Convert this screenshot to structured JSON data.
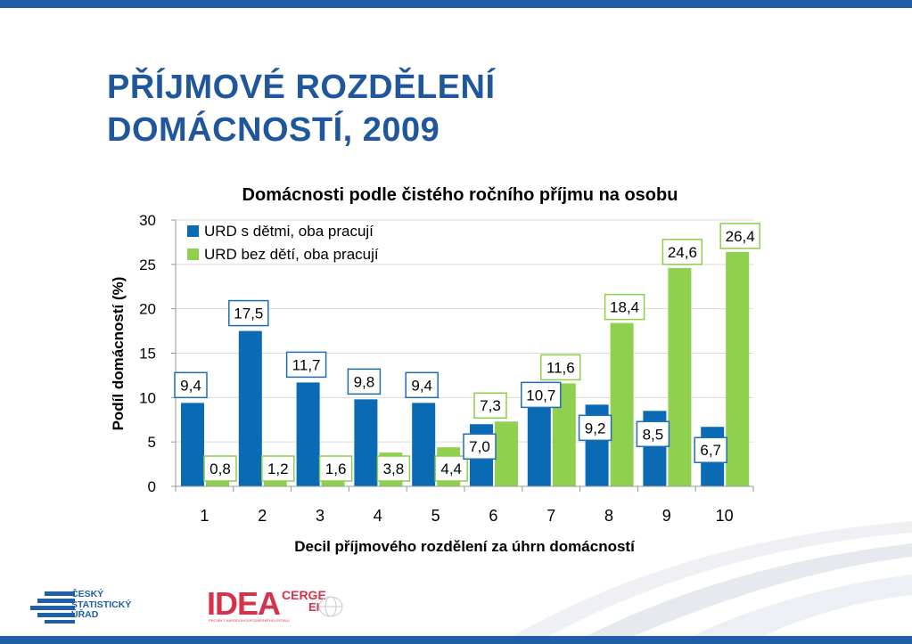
{
  "slide": {
    "title_line1": "PŘÍJMOVÉ ROZDĚLENÍ",
    "title_line2": "DOMÁCNOSTÍ, 2009"
  },
  "logos": {
    "csu_line1": "ČESKÝ",
    "csu_line2": "STATISTICKÝ",
    "csu_line3": "ÚŘAD",
    "idea_main": "IDEA",
    "idea_cerge": "CERGE",
    "idea_ei": "EI",
    "idea_sub": "PROJEKT NÁRODOHOSPODÁŘSKÉHO ÚSTAVU"
  },
  "colors": {
    "title": "#20579c",
    "bar_blue": "#0a6bb4",
    "bar_green": "#8fd14f",
    "label_border_blue": "#1f6eb5",
    "label_border_green": "#8ccf4b",
    "top_bar": "#1f5fa8"
  },
  "chart_data": {
    "type": "bar",
    "title": "Domácnosti podle čistého ročního příjmu na osobu",
    "xlabel": "Decil příjmového rozdělení za úhrn domácností",
    "ylabel": "Podíl domácností (%)",
    "categories": [
      "1",
      "2",
      "3",
      "4",
      "5",
      "6",
      "7",
      "8",
      "9",
      "10"
    ],
    "ylim": [
      0,
      30
    ],
    "yticks": [
      "0",
      "5",
      "10",
      "15",
      "20",
      "25",
      "30"
    ],
    "grid": true,
    "legend_position": "top-left",
    "series": [
      {
        "name": "URD s dětmi, oba pracují",
        "values": [
          9.4,
          17.5,
          11.7,
          9.8,
          9.4,
          7.0,
          10.7,
          9.2,
          8.5,
          6.7
        ],
        "labels": [
          "9,4",
          "17,5",
          "11,7",
          "9,8",
          "9,4",
          "7,0",
          "10,7",
          "9,2",
          "8,5",
          "6,7"
        ]
      },
      {
        "name": "URD bez dětí, oba pracují",
        "values": [
          0.8,
          1.2,
          1.6,
          3.8,
          4.4,
          7.3,
          11.6,
          18.4,
          24.6,
          26.4
        ],
        "labels": [
          "0,8",
          "1,2",
          "1,6",
          "3,8",
          "4,4",
          "7,3",
          "11,6",
          "18,4",
          "24,6",
          "26,4"
        ]
      }
    ]
  }
}
